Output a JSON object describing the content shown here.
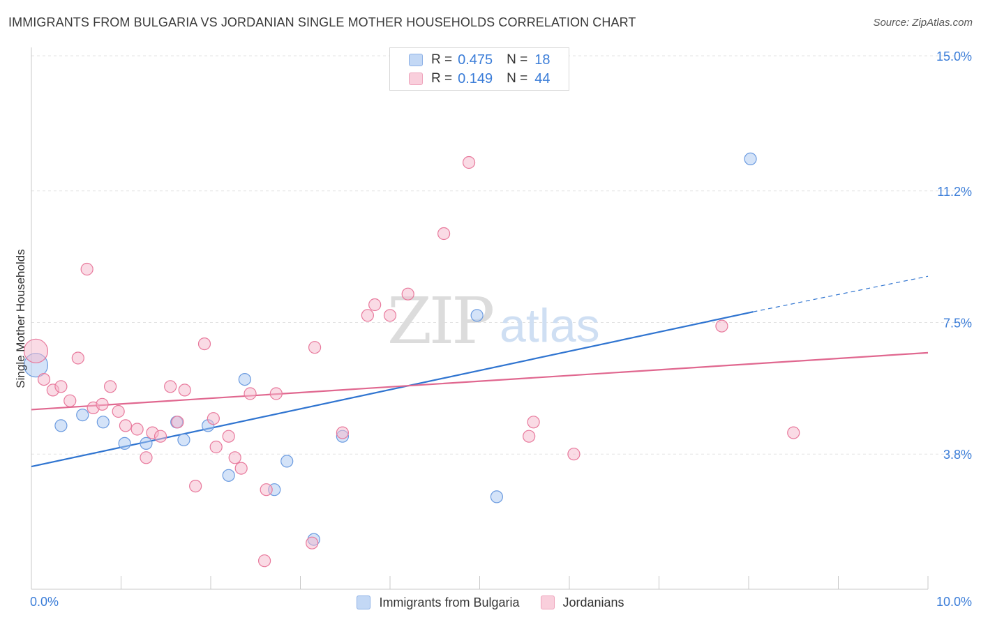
{
  "header": {
    "title": "IMMIGRANTS FROM BULGARIA VS JORDANIAN SINGLE MOTHER HOUSEHOLDS CORRELATION CHART",
    "source": "Source: ZipAtlas.com"
  },
  "watermark": {
    "zip": "ZIP",
    "atlas": "atlas"
  },
  "legend_top": [
    {
      "r_label": "R =",
      "r_value": "0.475",
      "n_label": "N =",
      "n_value": "18",
      "color": "#a9c8f2"
    },
    {
      "r_label": "R =",
      "r_value": "0.149",
      "n_label": "N =",
      "n_value": "44",
      "color": "#f5b8cb"
    }
  ],
  "chart_data": {
    "type": "scatter",
    "title": "IMMIGRANTS FROM BULGARIA VS JORDANIAN SINGLE MOTHER HOUSEHOLDS CORRELATION CHART",
    "xlabel": "",
    "ylabel": "Single Mother Households",
    "xlim": [
      0,
      10
    ],
    "ylim": [
      0,
      15
    ],
    "x_tick_labels": [
      {
        "value": 0,
        "label": "0.0%"
      },
      {
        "value": 10,
        "label": "10.0%"
      }
    ],
    "y_tick_labels": [
      {
        "value": 3.8,
        "label": "3.8%"
      },
      {
        "value": 7.5,
        "label": "7.5%"
      },
      {
        "value": 11.2,
        "label": "11.2%"
      },
      {
        "value": 15.0,
        "label": "15.0%"
      }
    ],
    "grid": "horizontal dashed",
    "legend_placement": "bottom",
    "series": [
      {
        "name": "Immigrants from Bulgaria",
        "color": "#6b9be0",
        "fill": "#a9c8f2",
        "points": [
          [
            0.05,
            6.3
          ],
          [
            0.33,
            4.6
          ],
          [
            0.57,
            4.9
          ],
          [
            0.8,
            4.7
          ],
          [
            1.04,
            4.1
          ],
          [
            1.28,
            4.1
          ],
          [
            1.62,
            4.7
          ],
          [
            1.7,
            4.2
          ],
          [
            1.97,
            4.6
          ],
          [
            2.2,
            3.2
          ],
          [
            2.38,
            5.9
          ],
          [
            2.71,
            2.8
          ],
          [
            2.85,
            3.6
          ],
          [
            3.15,
            1.4
          ],
          [
            3.47,
            4.3
          ],
          [
            4.97,
            7.7
          ],
          [
            5.19,
            2.6
          ],
          [
            8.02,
            12.1
          ]
        ],
        "trend": {
          "x0": 0.0,
          "y0": 3.45,
          "x1": 8.05,
          "y1": 7.8,
          "dash_x1": 10.0,
          "dash_y1": 8.8
        }
      },
      {
        "name": "Jordanians",
        "color": "#e8799c",
        "fill": "#f5b8cb",
        "points": [
          [
            0.05,
            6.7
          ],
          [
            0.14,
            5.9
          ],
          [
            0.24,
            5.6
          ],
          [
            0.33,
            5.7
          ],
          [
            0.43,
            5.3
          ],
          [
            0.52,
            6.5
          ],
          [
            0.62,
            9.0
          ],
          [
            0.69,
            5.1
          ],
          [
            0.79,
            5.2
          ],
          [
            0.88,
            5.7
          ],
          [
            0.97,
            5.0
          ],
          [
            1.05,
            4.6
          ],
          [
            1.18,
            4.5
          ],
          [
            1.28,
            3.7
          ],
          [
            1.35,
            4.4
          ],
          [
            1.44,
            4.3
          ],
          [
            1.55,
            5.7
          ],
          [
            1.63,
            4.7
          ],
          [
            1.71,
            5.6
          ],
          [
            1.83,
            2.9
          ],
          [
            1.93,
            6.9
          ],
          [
            2.03,
            4.8
          ],
          [
            2.06,
            4.0
          ],
          [
            2.2,
            4.3
          ],
          [
            2.27,
            3.7
          ],
          [
            2.34,
            3.4
          ],
          [
            2.44,
            5.5
          ],
          [
            2.6,
            0.8
          ],
          [
            2.62,
            2.8
          ],
          [
            2.73,
            5.5
          ],
          [
            3.13,
            1.3
          ],
          [
            3.16,
            6.8
          ],
          [
            3.47,
            4.4
          ],
          [
            3.75,
            7.7
          ],
          [
            3.83,
            8.0
          ],
          [
            4.0,
            7.7
          ],
          [
            4.2,
            8.3
          ],
          [
            4.6,
            10.0
          ],
          [
            4.88,
            12.0
          ],
          [
            5.55,
            4.3
          ],
          [
            5.6,
            4.7
          ],
          [
            6.05,
            3.8
          ],
          [
            7.7,
            7.4
          ],
          [
            8.5,
            4.4
          ]
        ],
        "trend": {
          "x0": 0.0,
          "y0": 5.05,
          "x1": 10.0,
          "y1": 6.65
        }
      }
    ]
  }
}
